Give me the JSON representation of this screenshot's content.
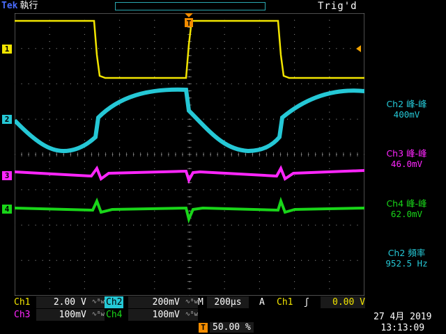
{
  "header": {
    "brand": "Tek",
    "run_state": "執行",
    "trigger_status": "Trig'd",
    "trigger_badge": "T"
  },
  "channel_markers": [
    "1",
    "2",
    "3",
    "4"
  ],
  "colors": {
    "ch1": "#f2e500",
    "ch2": "#25c8d6",
    "ch3": "#ff26ff",
    "ch4": "#19d619",
    "trigger": "#f28c00",
    "grid": "#9a9a9a"
  },
  "measurements": [
    {
      "label": "Ch2 峰-峰",
      "value": "400mV"
    },
    {
      "label": "Ch3 峰-峰",
      "value": "46.0mV"
    },
    {
      "label": "Ch4 峰-峰",
      "value": "62.0mV"
    },
    {
      "label": "Ch2 頻率",
      "value": "952.5 Hz"
    }
  ],
  "status": {
    "ch1_label": "Ch1",
    "ch1_scale": "2.00 V",
    "ch2_label": "Ch2",
    "ch2_scale": "200mV",
    "timebase_label": "M",
    "timebase": "200µs",
    "acq_mode": "A",
    "trig_source": "Ch1",
    "trig_slope": "ʃ",
    "trig_level": "0.00 V",
    "ch3_label": "Ch3",
    "ch3_scale": "100mV",
    "ch4_label": "Ch4",
    "ch4_scale": "100mV",
    "bw_icon": "∿ᴮw",
    "trig_pos_badge": "T",
    "trig_pos": "50.00 %"
  },
  "date": "27 4月  2019",
  "time": "13:13:09"
}
